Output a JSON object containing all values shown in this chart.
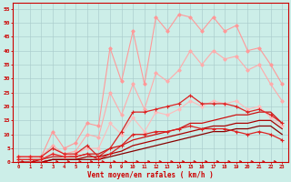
{
  "title": "",
  "xlabel": "Vent moyen/en rafales ( km/h )",
  "ylabel": "",
  "xlim": [
    -0.5,
    23.5
  ],
  "ylim": [
    0,
    57
  ],
  "xticks": [
    0,
    1,
    2,
    3,
    4,
    5,
    6,
    7,
    8,
    9,
    10,
    11,
    12,
    13,
    14,
    15,
    16,
    17,
    18,
    19,
    20,
    21,
    22,
    23
  ],
  "yticks": [
    0,
    5,
    10,
    15,
    20,
    25,
    30,
    35,
    40,
    45,
    50,
    55
  ],
  "background_color": "#cceee8",
  "grid_color": "#aacccc",
  "series": [
    {
      "color": "#ff9999",
      "linewidth": 0.8,
      "marker": "D",
      "markersize": 1.8,
      "x": [
        0,
        1,
        2,
        3,
        4,
        5,
        6,
        7,
        8,
        9,
        10,
        11,
        12,
        13,
        14,
        15,
        16,
        17,
        18,
        19,
        20,
        21,
        22,
        23
      ],
      "y": [
        2,
        2,
        2,
        11,
        5,
        7,
        14,
        13,
        41,
        29,
        47,
        28,
        52,
        47,
        53,
        52,
        47,
        52,
        47,
        49,
        40,
        41,
        35,
        28
      ]
    },
    {
      "color": "#ffaaaa",
      "linewidth": 0.8,
      "marker": "D",
      "markersize": 1.8,
      "x": [
        0,
        1,
        2,
        3,
        4,
        5,
        6,
        7,
        8,
        9,
        10,
        11,
        12,
        13,
        14,
        15,
        16,
        17,
        18,
        19,
        20,
        21,
        22,
        23
      ],
      "y": [
        2,
        2,
        2,
        6,
        3,
        4,
        10,
        9,
        25,
        17,
        28,
        19,
        32,
        29,
        33,
        40,
        35,
        40,
        37,
        38,
        33,
        35,
        28,
        22
      ]
    },
    {
      "color": "#ffbbbb",
      "linewidth": 0.8,
      "marker": "D",
      "markersize": 1.8,
      "x": [
        0,
        1,
        2,
        3,
        4,
        5,
        6,
        7,
        8,
        9,
        10,
        11,
        12,
        13,
        14,
        15,
        16,
        17,
        18,
        19,
        20,
        21,
        22,
        23
      ],
      "y": [
        1,
        1,
        1,
        3,
        2,
        3,
        5,
        5,
        14,
        10,
        16,
        11,
        18,
        17,
        19,
        22,
        20,
        22,
        21,
        22,
        19,
        20,
        16,
        13
      ]
    },
    {
      "color": "#dd2222",
      "linewidth": 0.9,
      "marker": "+",
      "markersize": 3,
      "x": [
        0,
        1,
        2,
        3,
        4,
        5,
        6,
        7,
        8,
        9,
        10,
        11,
        12,
        13,
        14,
        15,
        16,
        17,
        18,
        19,
        20,
        21,
        22,
        23
      ],
      "y": [
        2,
        2,
        2,
        5,
        3,
        3,
        6,
        2,
        5,
        11,
        18,
        18,
        19,
        20,
        21,
        24,
        21,
        21,
        21,
        20,
        18,
        19,
        17,
        14
      ]
    },
    {
      "color": "#dd2222",
      "linewidth": 0.9,
      "marker": "+",
      "markersize": 3,
      "x": [
        0,
        1,
        2,
        3,
        4,
        5,
        6,
        7,
        8,
        9,
        10,
        11,
        12,
        13,
        14,
        15,
        16,
        17,
        18,
        19,
        20,
        21,
        22,
        23
      ],
      "y": [
        1,
        1,
        1,
        3,
        2,
        2,
        3,
        1,
        3,
        6,
        10,
        10,
        11,
        11,
        12,
        13,
        12,
        12,
        12,
        11,
        10,
        11,
        10,
        8
      ]
    },
    {
      "color": "#cc1111",
      "linewidth": 0.9,
      "marker": null,
      "markersize": 0,
      "x": [
        0,
        1,
        2,
        3,
        4,
        5,
        6,
        7,
        8,
        9,
        10,
        11,
        12,
        13,
        14,
        15,
        16,
        17,
        18,
        19,
        20,
        21,
        22,
        23
      ],
      "y": [
        0,
        0,
        1,
        2,
        2,
        2,
        3,
        3,
        5,
        6,
        8,
        9,
        10,
        11,
        12,
        14,
        14,
        15,
        16,
        17,
        17,
        18,
        18,
        14
      ]
    },
    {
      "color": "#aa0000",
      "linewidth": 0.9,
      "marker": null,
      "markersize": 0,
      "x": [
        0,
        1,
        2,
        3,
        4,
        5,
        6,
        7,
        8,
        9,
        10,
        11,
        12,
        13,
        14,
        15,
        16,
        17,
        18,
        19,
        20,
        21,
        22,
        23
      ],
      "y": [
        0,
        0,
        0,
        1,
        1,
        1,
        2,
        2,
        3,
        4,
        6,
        7,
        8,
        9,
        10,
        11,
        12,
        13,
        13,
        14,
        14,
        15,
        15,
        12
      ]
    },
    {
      "color": "#880000",
      "linewidth": 0.9,
      "marker": null,
      "markersize": 0,
      "x": [
        0,
        1,
        2,
        3,
        4,
        5,
        6,
        7,
        8,
        9,
        10,
        11,
        12,
        13,
        14,
        15,
        16,
        17,
        18,
        19,
        20,
        21,
        22,
        23
      ],
      "y": [
        0,
        0,
        0,
        1,
        1,
        1,
        1,
        1,
        2,
        3,
        4,
        5,
        6,
        7,
        8,
        9,
        10,
        11,
        11,
        12,
        12,
        13,
        13,
        10
      ]
    }
  ],
  "arrow_color": "#cc0000"
}
